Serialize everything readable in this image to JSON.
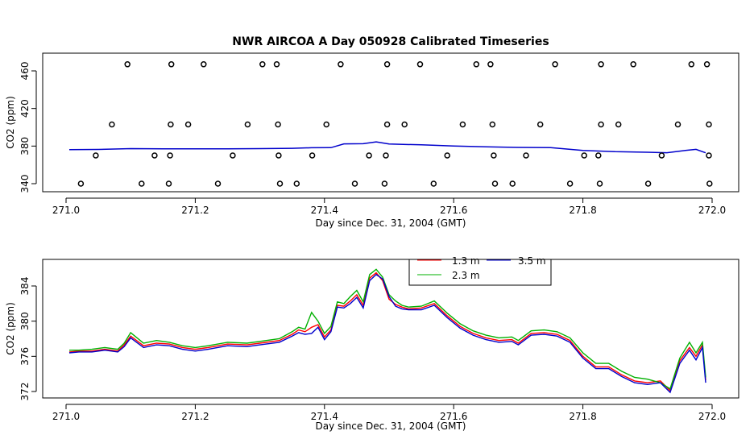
{
  "figure": {
    "title": "NWR AIRCOA A  Day 050928  Calibrated Timeseries"
  },
  "chart_data": [
    {
      "type": "scatter",
      "title": "NWR AIRCOA A  Day 050928  Calibrated Timeseries",
      "xlabel": "Day since Dec. 31, 2004 (GMT)",
      "ylabel": "CO2 (ppm)",
      "xlim": [
        271.0,
        272.0
      ],
      "ylim": [
        335,
        472
      ],
      "xticks": [
        "271.0",
        "271.2",
        "271.4",
        "271.6",
        "271.8",
        "272.0"
      ],
      "yticks": [
        "340",
        "380",
        "420",
        "460"
      ],
      "markers": [
        {
          "x": 271.095,
          "y": 467
        },
        {
          "x": 271.163,
          "y": 467
        },
        {
          "x": 271.213,
          "y": 467
        },
        {
          "x": 271.304,
          "y": 467
        },
        {
          "x": 271.326,
          "y": 467
        },
        {
          "x": 271.425,
          "y": 467
        },
        {
          "x": 271.497,
          "y": 467
        },
        {
          "x": 271.548,
          "y": 467
        },
        {
          "x": 271.635,
          "y": 467
        },
        {
          "x": 271.657,
          "y": 467
        },
        {
          "x": 271.757,
          "y": 467
        },
        {
          "x": 271.828,
          "y": 467
        },
        {
          "x": 271.878,
          "y": 467
        },
        {
          "x": 271.968,
          "y": 467
        },
        {
          "x": 271.992,
          "y": 467
        },
        {
          "x": 271.071,
          "y": 403
        },
        {
          "x": 271.162,
          "y": 403
        },
        {
          "x": 271.189,
          "y": 403
        },
        {
          "x": 271.281,
          "y": 403
        },
        {
          "x": 271.328,
          "y": 403
        },
        {
          "x": 271.403,
          "y": 403
        },
        {
          "x": 271.497,
          "y": 403
        },
        {
          "x": 271.524,
          "y": 403
        },
        {
          "x": 271.614,
          "y": 403
        },
        {
          "x": 271.66,
          "y": 403
        },
        {
          "x": 271.734,
          "y": 403
        },
        {
          "x": 271.828,
          "y": 403
        },
        {
          "x": 271.855,
          "y": 403
        },
        {
          "x": 271.947,
          "y": 403
        },
        {
          "x": 271.995,
          "y": 403
        },
        {
          "x": 271.046,
          "y": 370
        },
        {
          "x": 271.137,
          "y": 370
        },
        {
          "x": 271.161,
          "y": 370
        },
        {
          "x": 271.258,
          "y": 370
        },
        {
          "x": 271.329,
          "y": 370
        },
        {
          "x": 271.381,
          "y": 370
        },
        {
          "x": 271.469,
          "y": 370
        },
        {
          "x": 271.495,
          "y": 370
        },
        {
          "x": 271.59,
          "y": 370
        },
        {
          "x": 271.662,
          "y": 370
        },
        {
          "x": 271.712,
          "y": 370
        },
        {
          "x": 271.802,
          "y": 370
        },
        {
          "x": 271.824,
          "y": 370
        },
        {
          "x": 271.922,
          "y": 370
        },
        {
          "x": 271.995,
          "y": 370
        },
        {
          "x": 271.023,
          "y": 340
        },
        {
          "x": 271.117,
          "y": 340
        },
        {
          "x": 271.159,
          "y": 340
        },
        {
          "x": 271.235,
          "y": 340
        },
        {
          "x": 271.331,
          "y": 340
        },
        {
          "x": 271.357,
          "y": 340
        },
        {
          "x": 271.447,
          "y": 340
        },
        {
          "x": 271.493,
          "y": 340
        },
        {
          "x": 271.569,
          "y": 340
        },
        {
          "x": 271.664,
          "y": 340
        },
        {
          "x": 271.691,
          "y": 340
        },
        {
          "x": 271.78,
          "y": 340
        },
        {
          "x": 271.826,
          "y": 340
        },
        {
          "x": 271.901,
          "y": 340
        },
        {
          "x": 271.996,
          "y": 340
        }
      ],
      "series": [
        {
          "color": "#0000cc",
          "x": [
            271.005,
            271.05,
            271.1,
            271.15,
            271.2,
            271.25,
            271.3,
            271.35,
            271.38,
            271.41,
            271.43,
            271.46,
            271.48,
            271.5,
            271.55,
            271.6,
            271.65,
            271.7,
            271.75,
            271.8,
            271.85,
            271.9,
            271.93,
            271.96,
            271.975,
            271.99
          ],
          "y": [
            376.2,
            376.4,
            377.3,
            377.0,
            377.0,
            377.0,
            377.3,
            377.6,
            378.2,
            378.3,
            382.3,
            382.5,
            384.5,
            382.2,
            381.3,
            380.1,
            379.2,
            378.6,
            378.4,
            375.4,
            374.0,
            373.4,
            372.9,
            375.5,
            376.5,
            372.8
          ]
        }
      ]
    },
    {
      "type": "line",
      "xlabel": "Day since Dec. 31, 2004 (GMT)",
      "ylabel": "CO2 (ppm)",
      "xlim": [
        271.0,
        272.0
      ],
      "ylim": [
        371.7,
        386.2
      ],
      "xticks": [
        "271.0",
        "271.2",
        "271.4",
        "271.6",
        "271.8",
        "272.0"
      ],
      "yticks": [
        "372",
        "376",
        "380",
        "384"
      ],
      "legend": {
        "position": "top-center"
      },
      "x": [
        271.005,
        271.02,
        271.04,
        271.06,
        271.08,
        271.09,
        271.1,
        271.12,
        271.14,
        271.16,
        271.18,
        271.2,
        271.22,
        271.25,
        271.28,
        271.3,
        271.33,
        271.35,
        271.36,
        271.37,
        271.38,
        271.39,
        271.4,
        271.41,
        271.42,
        271.43,
        271.44,
        271.45,
        271.46,
        271.47,
        271.48,
        271.49,
        271.5,
        271.51,
        271.52,
        271.53,
        271.55,
        271.57,
        271.59,
        271.61,
        271.63,
        271.65,
        271.67,
        271.69,
        271.7,
        271.72,
        271.74,
        271.76,
        271.78,
        271.8,
        271.82,
        271.84,
        271.86,
        271.88,
        271.9,
        271.92,
        271.935,
        271.95,
        271.965,
        271.975,
        271.985,
        271.99
      ],
      "series": [
        {
          "name": "1.3 m",
          "color": "#ff0000",
          "values": [
            376.5,
            376.6,
            376.6,
            376.8,
            376.6,
            377.3,
            378.3,
            377.2,
            377.5,
            377.4,
            377.0,
            376.8,
            377.0,
            377.4,
            377.3,
            377.5,
            377.8,
            378.5,
            379.0,
            378.8,
            379.3,
            379.6,
            378.2,
            379.0,
            381.8,
            381.7,
            382.3,
            383.0,
            381.8,
            384.9,
            385.5,
            384.6,
            382.5,
            381.9,
            381.6,
            381.4,
            381.5,
            382.0,
            380.6,
            379.4,
            378.6,
            378.1,
            377.8,
            377.9,
            377.5,
            378.6,
            378.7,
            378.5,
            377.8,
            376.0,
            374.8,
            374.8,
            373.9,
            373.2,
            373.0,
            373.2,
            372.1,
            375.5,
            377.0,
            376.0,
            377.3,
            373.3
          ]
        },
        {
          "name": "2.3 m",
          "color": "#00b000",
          "values": [
            376.7,
            376.7,
            376.8,
            377.0,
            376.8,
            377.5,
            378.7,
            377.5,
            377.8,
            377.6,
            377.2,
            377.0,
            377.2,
            377.6,
            377.5,
            377.7,
            378.0,
            378.8,
            379.3,
            379.1,
            381.0,
            380.0,
            378.6,
            379.4,
            382.2,
            382.0,
            382.8,
            383.5,
            382.2,
            385.3,
            385.9,
            385.0,
            383.0,
            382.3,
            381.8,
            381.6,
            381.7,
            382.3,
            380.9,
            379.7,
            378.9,
            378.4,
            378.1,
            378.2,
            377.8,
            378.9,
            379.0,
            378.8,
            378.1,
            376.4,
            375.2,
            375.2,
            374.3,
            373.6,
            373.4,
            373.0,
            372.3,
            375.8,
            377.6,
            376.4,
            377.6,
            373.6
          ]
        },
        {
          "name": "3.5 m",
          "color": "#0000cc",
          "values": [
            376.4,
            376.5,
            376.5,
            376.7,
            376.5,
            377.1,
            378.1,
            377.0,
            377.3,
            377.2,
            376.8,
            376.6,
            376.8,
            377.2,
            377.1,
            377.3,
            377.6,
            378.3,
            378.7,
            378.5,
            378.6,
            379.3,
            377.9,
            378.8,
            381.6,
            381.5,
            382.0,
            382.7,
            381.5,
            384.6,
            385.3,
            384.8,
            382.8,
            381.7,
            381.4,
            381.3,
            381.3,
            381.8,
            380.4,
            379.2,
            378.4,
            377.9,
            377.6,
            377.7,
            377.3,
            378.4,
            378.5,
            378.3,
            377.6,
            375.8,
            374.6,
            374.6,
            373.7,
            373.0,
            372.8,
            373.0,
            371.9,
            375.2,
            376.7,
            375.6,
            377.0,
            373.0
          ]
        }
      ]
    }
  ]
}
